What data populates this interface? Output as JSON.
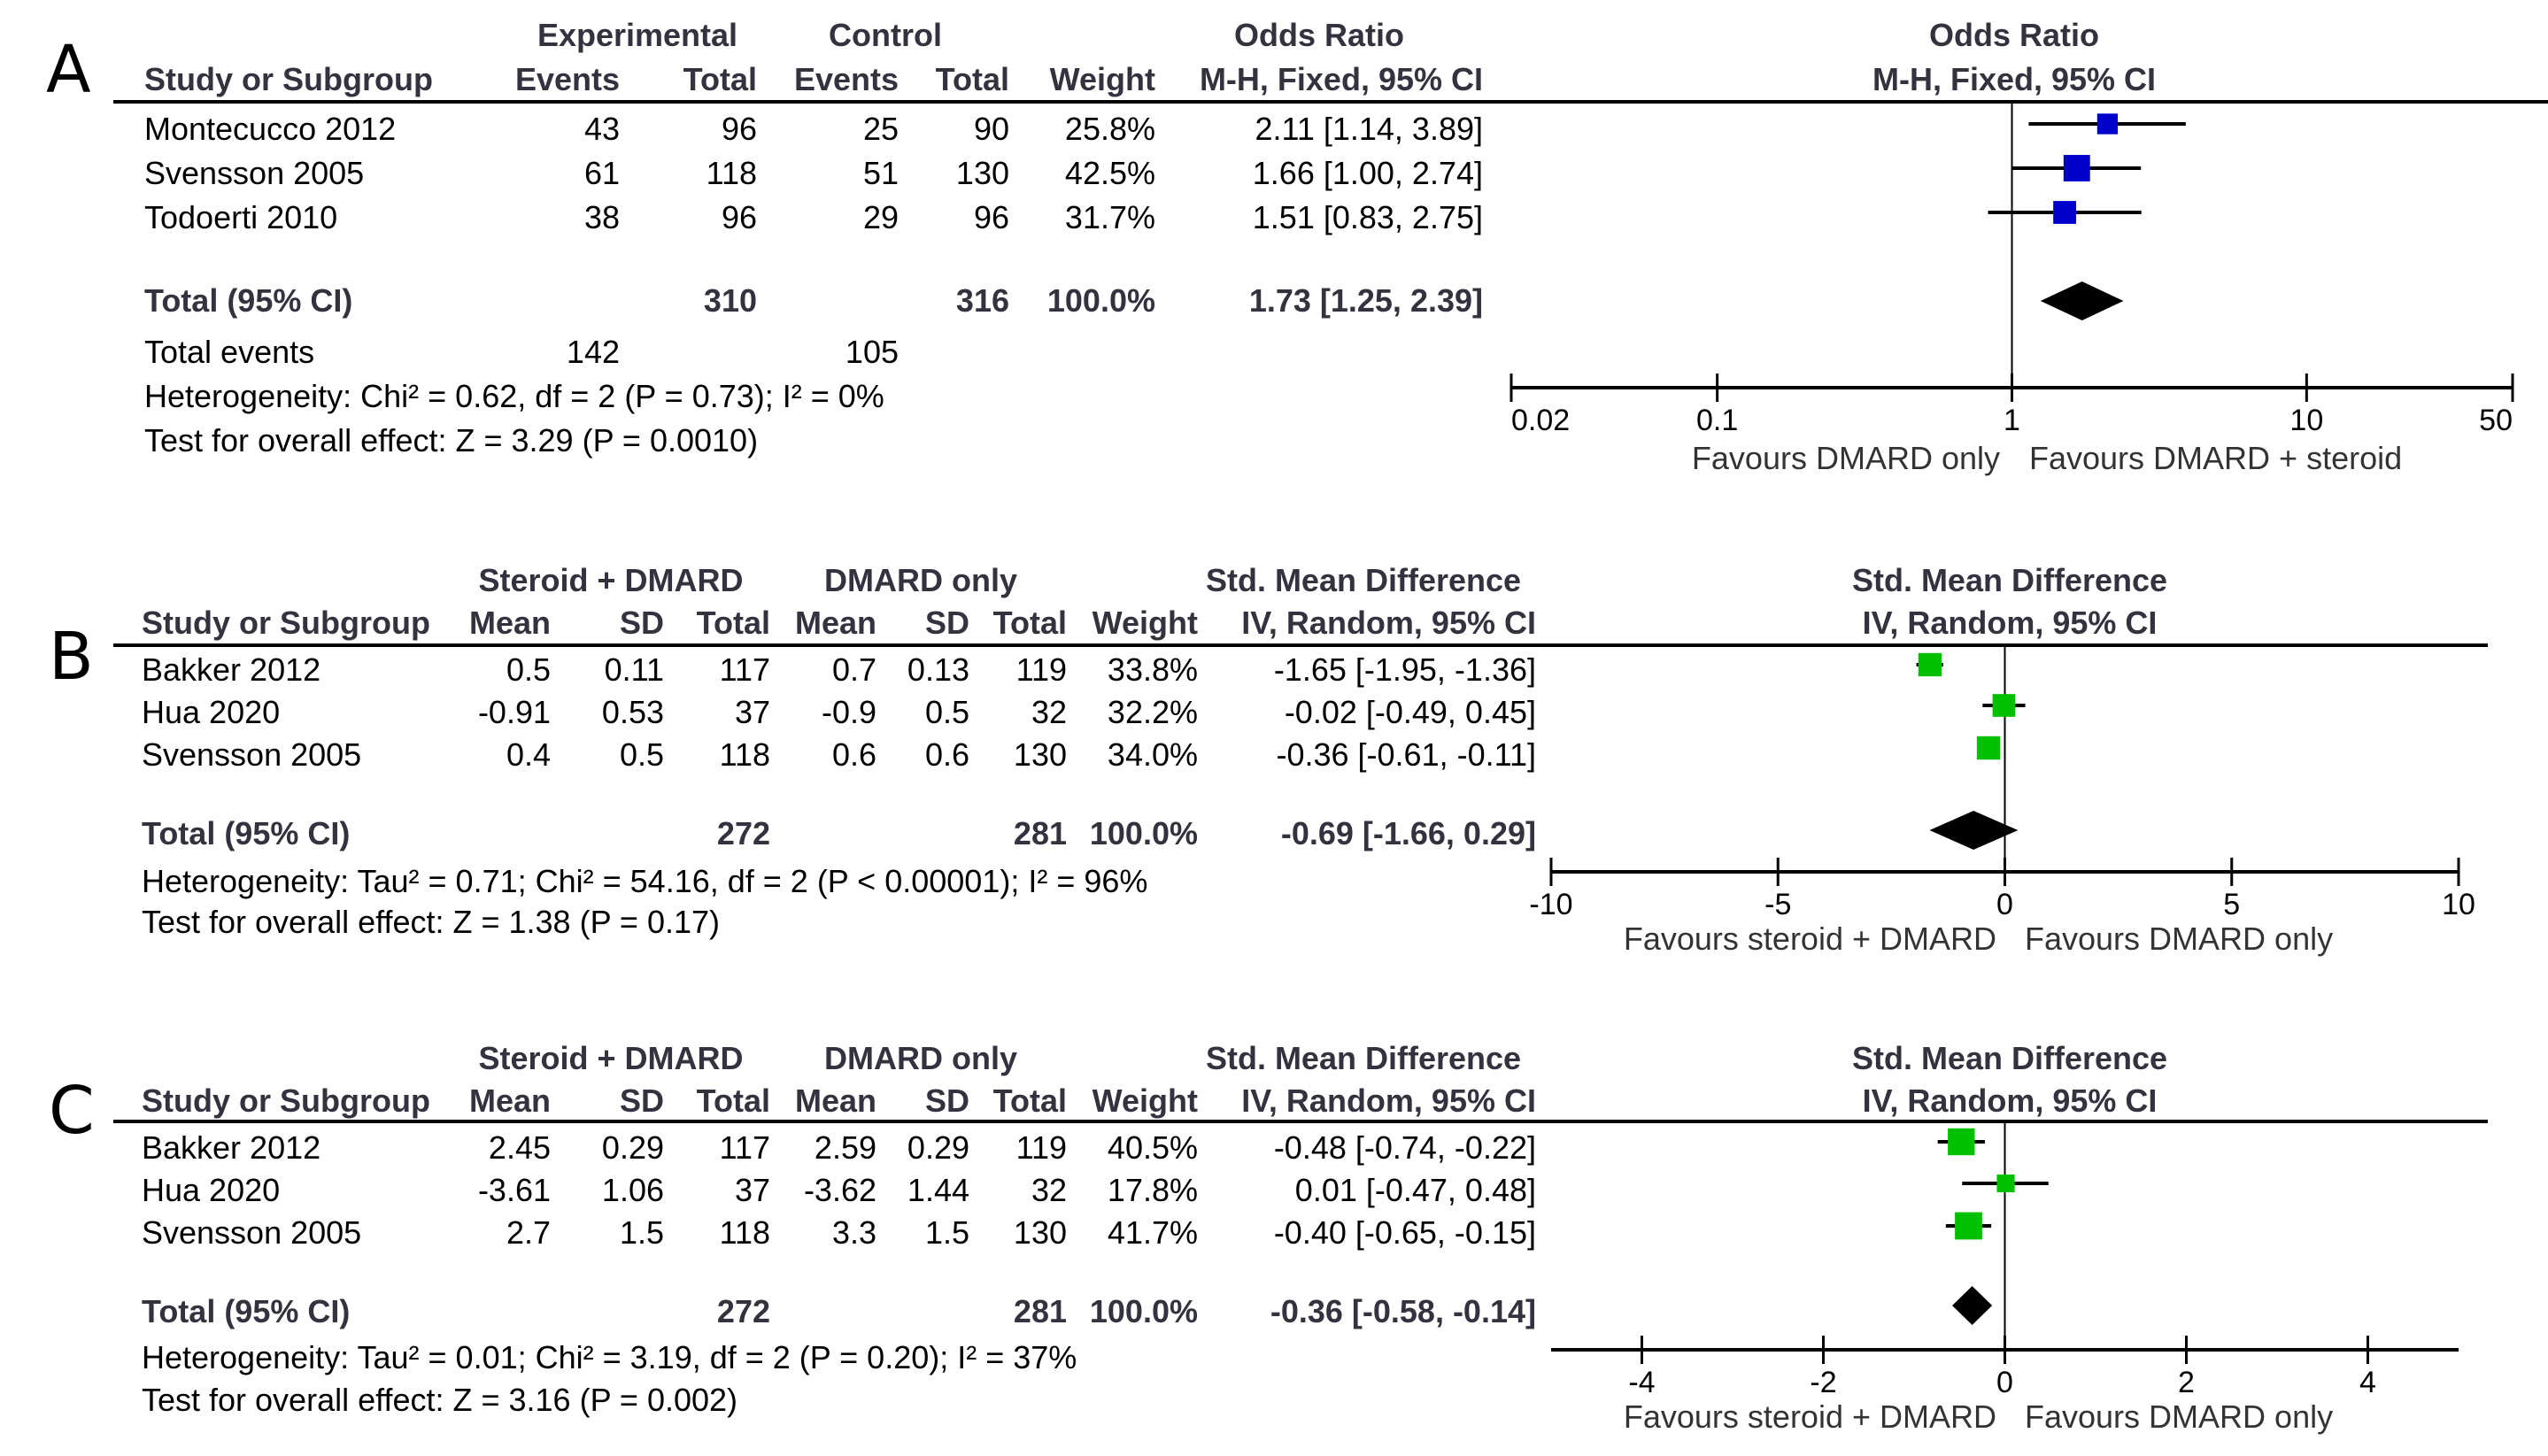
{
  "panels": [
    {
      "letter": "A",
      "group_headers": {
        "experimental": "Experimental",
        "control": "Control",
        "effect": "Odds Ratio",
        "plot": "Odds Ratio"
      },
      "columns": {
        "study": "Study or Subgroup",
        "exp_events": "Events",
        "exp_total": "Total",
        "ctl_events": "Events",
        "ctl_total": "Total",
        "weight": "Weight",
        "effect": "M-H, Fixed, 95% CI",
        "plot": "M-H, Fixed, 95% CI"
      },
      "rows": [
        {
          "study": "Montecucco 2012",
          "exp_events": "43",
          "exp_total": "96",
          "ctl_events": "25",
          "ctl_total": "90",
          "weight": "25.8%",
          "effect": "2.11 [1.14, 3.89]"
        },
        {
          "study": "Svensson 2005",
          "exp_events": "61",
          "exp_total": "118",
          "ctl_events": "51",
          "ctl_total": "130",
          "weight": "42.5%",
          "effect": "1.66 [1.00, 2.74]"
        },
        {
          "study": "Todoerti 2010",
          "exp_events": "38",
          "exp_total": "96",
          "ctl_events": "29",
          "ctl_total": "96",
          "weight": "31.7%",
          "effect": "1.51 [0.83, 2.75]"
        }
      ],
      "total": {
        "label": "Total (95% CI)",
        "exp_total": "310",
        "ctl_total": "316",
        "weight": "100.0%",
        "effect": "1.73 [1.25, 2.39]"
      },
      "total_events": {
        "label": "Total events",
        "exp": "142",
        "ctl": "105"
      },
      "heterogeneity": "Heterogeneity: Chi² = 0.62, df = 2 (P = 0.73); I² = 0%",
      "overall_effect": "Test for overall effect: Z = 3.29 (P = 0.0010)",
      "favours_left": "Favours DMARD only",
      "favours_right": "Favours DMARD + steroid"
    },
    {
      "letter": "B",
      "group_headers": {
        "experimental": "Steroid + DMARD",
        "control": "DMARD only",
        "effect": "Std. Mean Difference",
        "plot": "Std. Mean Difference"
      },
      "columns": {
        "study": "Study or Subgroup",
        "exp_mean": "Mean",
        "exp_sd": "SD",
        "exp_total": "Total",
        "ctl_mean": "Mean",
        "ctl_sd": "SD",
        "ctl_total": "Total",
        "weight": "Weight",
        "effect": "IV, Random, 95% CI",
        "plot": "IV, Random, 95% CI"
      },
      "rows": [
        {
          "study": "Bakker 2012",
          "exp_mean": "0.5",
          "exp_sd": "0.11",
          "exp_total": "117",
          "ctl_mean": "0.7",
          "ctl_sd": "0.13",
          "ctl_total": "119",
          "weight": "33.8%",
          "effect": "-1.65 [-1.95, -1.36]"
        },
        {
          "study": "Hua 2020",
          "exp_mean": "-0.91",
          "exp_sd": "0.53",
          "exp_total": "37",
          "ctl_mean": "-0.9",
          "ctl_sd": "0.5",
          "ctl_total": "32",
          "weight": "32.2%",
          "effect": "-0.02 [-0.49, 0.45]"
        },
        {
          "study": "Svensson 2005",
          "exp_mean": "0.4",
          "exp_sd": "0.5",
          "exp_total": "118",
          "ctl_mean": "0.6",
          "ctl_sd": "0.6",
          "ctl_total": "130",
          "weight": "34.0%",
          "effect": "-0.36 [-0.61, -0.11]"
        }
      ],
      "total": {
        "label": "Total (95% CI)",
        "exp_total": "272",
        "ctl_total": "281",
        "weight": "100.0%",
        "effect": "-0.69 [-1.66, 0.29]"
      },
      "heterogeneity": "Heterogeneity: Tau² = 0.71; Chi² = 54.16, df = 2 (P < 0.00001); I² = 96%",
      "overall_effect": "Test for overall effect: Z = 1.38 (P = 0.17)",
      "favours_left": "Favours steroid + DMARD",
      "favours_right": "Favours DMARD only"
    },
    {
      "letter": "C",
      "group_headers": {
        "experimental": "Steroid + DMARD",
        "control": "DMARD only",
        "effect": "Std. Mean Difference",
        "plot": "Std. Mean Difference"
      },
      "columns": {
        "study": "Study or Subgroup",
        "exp_mean": "Mean",
        "exp_sd": "SD",
        "exp_total": "Total",
        "ctl_mean": "Mean",
        "ctl_sd": "SD",
        "ctl_total": "Total",
        "weight": "Weight",
        "effect": "IV, Random, 95% CI",
        "plot": "IV, Random, 95% CI"
      },
      "rows": [
        {
          "study": "Bakker 2012",
          "exp_mean": "2.45",
          "exp_sd": "0.29",
          "exp_total": "117",
          "ctl_mean": "2.59",
          "ctl_sd": "0.29",
          "ctl_total": "119",
          "weight": "40.5%",
          "effect": "-0.48 [-0.74, -0.22]"
        },
        {
          "study": "Hua 2020",
          "exp_mean": "-3.61",
          "exp_sd": "1.06",
          "exp_total": "37",
          "ctl_mean": "-3.62",
          "ctl_sd": "1.44",
          "ctl_total": "32",
          "weight": "17.8%",
          "effect": "0.01 [-0.47, 0.48]"
        },
        {
          "study": "Svensson 2005",
          "exp_mean": "2.7",
          "exp_sd": "1.5",
          "exp_total": "118",
          "ctl_mean": "3.3",
          "ctl_sd": "1.5",
          "ctl_total": "130",
          "weight": "41.7%",
          "effect": "-0.40 [-0.65, -0.15]"
        }
      ],
      "total": {
        "label": "Total (95% CI)",
        "exp_total": "272",
        "ctl_total": "281",
        "weight": "100.0%",
        "effect": "-0.36 [-0.58, -0.14]"
      },
      "heterogeneity": "Heterogeneity: Tau² = 0.01; Chi² = 3.19, df = 2 (P = 0.20); I² = 37%",
      "overall_effect": "Test for overall effect: Z = 3.16 (P = 0.002)",
      "favours_left": "Favours steroid + DMARD",
      "favours_right": "Favours DMARD only"
    }
  ],
  "colors": {
    "study_marker_A": "#0000CC",
    "study_marker_BC": "#00C000",
    "diamond": "#000000",
    "header_text": "#333340"
  },
  "chart_data": [
    {
      "type": "scatter",
      "title": "Odds Ratio (M-H, Fixed, 95% CI)",
      "scale": "log",
      "xlim": [
        0.02,
        50
      ],
      "ticks": [
        0.02,
        0.1,
        1,
        10,
        50
      ],
      "tick_labels": [
        "0.02",
        "0.1",
        "1",
        "10",
        "50"
      ],
      "null_value": 1,
      "xlabel_left": "Favours DMARD only",
      "xlabel_right": "Favours DMARD + steroid",
      "studies": [
        {
          "name": "Montecucco 2012",
          "estimate": 2.11,
          "lower": 1.14,
          "upper": 3.89,
          "weight": 25.8
        },
        {
          "name": "Svensson 2005",
          "estimate": 1.66,
          "lower": 1.0,
          "upper": 2.74,
          "weight": 42.5
        },
        {
          "name": "Todoerti 2010",
          "estimate": 1.51,
          "lower": 0.83,
          "upper": 2.75,
          "weight": 31.7
        }
      ],
      "pooled": {
        "estimate": 1.73,
        "lower": 1.25,
        "upper": 2.39
      }
    },
    {
      "type": "scatter",
      "title": "Std. Mean Difference (IV, Random, 95% CI)",
      "scale": "linear",
      "xlim": [
        -10,
        10
      ],
      "ticks": [
        -10,
        -5,
        0,
        5,
        10
      ],
      "tick_labels": [
        "-10",
        "-5",
        "0",
        "5",
        "10"
      ],
      "null_value": 0,
      "xlabel_left": "Favours steroid + DMARD",
      "xlabel_right": "Favours DMARD only",
      "studies": [
        {
          "name": "Bakker 2012",
          "estimate": -1.65,
          "lower": -1.95,
          "upper": -1.36,
          "weight": 33.8
        },
        {
          "name": "Hua 2020",
          "estimate": -0.02,
          "lower": -0.49,
          "upper": 0.45,
          "weight": 32.2
        },
        {
          "name": "Svensson 2005",
          "estimate": -0.36,
          "lower": -0.61,
          "upper": -0.11,
          "weight": 34.0
        }
      ],
      "pooled": {
        "estimate": -0.69,
        "lower": -1.66,
        "upper": 0.29
      }
    },
    {
      "type": "scatter",
      "title": "Std. Mean Difference (IV, Random, 95% CI)",
      "scale": "linear",
      "xlim": [
        -5,
        5
      ],
      "ticks": [
        -4,
        -2,
        0,
        2,
        4
      ],
      "tick_labels": [
        "-4",
        "-2",
        "0",
        "2",
        "4"
      ],
      "null_value": 0,
      "xlabel_left": "Favours steroid + DMARD",
      "xlabel_right": "Favours DMARD only",
      "studies": [
        {
          "name": "Bakker 2012",
          "estimate": -0.48,
          "lower": -0.74,
          "upper": -0.22,
          "weight": 40.5
        },
        {
          "name": "Hua 2020",
          "estimate": 0.01,
          "lower": -0.47,
          "upper": 0.48,
          "weight": 17.8
        },
        {
          "name": "Svensson 2005",
          "estimate": -0.4,
          "lower": -0.65,
          "upper": -0.15,
          "weight": 41.7
        }
      ],
      "pooled": {
        "estimate": -0.36,
        "lower": -0.58,
        "upper": -0.14
      }
    }
  ]
}
